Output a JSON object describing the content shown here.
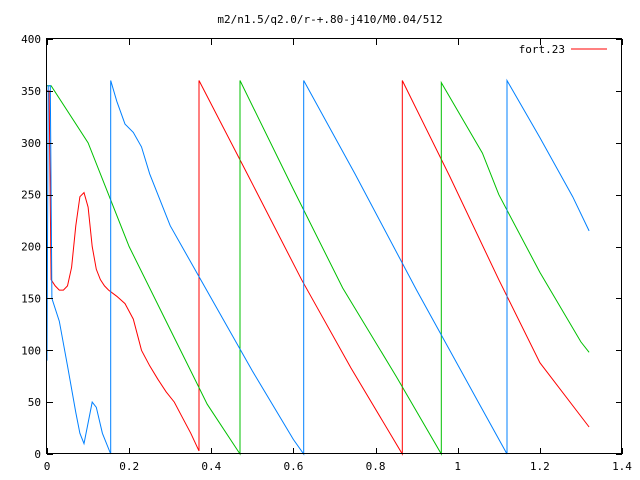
{
  "chart_data": {
    "type": "line",
    "title": "m2/n1.5/q2.0/r-+.80-j410/M0.04/512",
    "xlabel": "",
    "ylabel": "",
    "xlim": [
      0,
      1.4
    ],
    "ylim": [
      0,
      400
    ],
    "xticks": [
      0,
      0.2,
      0.4,
      0.6,
      0.8,
      1,
      1.2,
      1.4
    ],
    "xtick_labels": [
      "0",
      "0.2",
      "0.4",
      "0.6",
      "0.8",
      "1",
      "1.2",
      "1.4"
    ],
    "yticks": [
      0,
      50,
      100,
      150,
      200,
      250,
      300,
      350,
      400
    ],
    "ytick_labels": [
      "0",
      "50",
      "100",
      "150",
      "200",
      "250",
      "300",
      "350",
      "400"
    ],
    "legend": {
      "placement": "top-right",
      "entries": [
        {
          "label": "fort.23",
          "color": "#ff0000"
        }
      ]
    },
    "grid": false,
    "series": [
      {
        "color": "#ff0000",
        "points": [
          [
            0.0,
            350
          ],
          [
            0.005,
            350
          ],
          [
            0.01,
            168
          ],
          [
            0.02,
            162
          ],
          [
            0.03,
            158
          ],
          [
            0.04,
            158
          ],
          [
            0.05,
            162
          ],
          [
            0.06,
            180
          ],
          [
            0.07,
            220
          ],
          [
            0.08,
            248
          ],
          [
            0.09,
            252
          ],
          [
            0.1,
            238
          ],
          [
            0.11,
            200
          ],
          [
            0.12,
            178
          ],
          [
            0.13,
            168
          ],
          [
            0.14,
            162
          ],
          [
            0.15,
            158
          ],
          [
            0.17,
            152
          ],
          [
            0.19,
            145
          ],
          [
            0.21,
            130
          ],
          [
            0.23,
            100
          ],
          [
            0.25,
            85
          ],
          [
            0.27,
            72
          ],
          [
            0.29,
            60
          ],
          [
            0.31,
            50
          ],
          [
            0.33,
            35
          ],
          [
            0.35,
            20
          ],
          [
            0.37,
            3
          ],
          [
            0.37,
            360
          ],
          [
            0.49,
            268
          ],
          [
            0.62,
            168
          ],
          [
            0.74,
            83
          ],
          [
            0.865,
            0
          ],
          [
            0.865,
            360
          ],
          [
            0.98,
            268
          ],
          [
            1.1,
            168
          ],
          [
            1.2,
            88
          ],
          [
            1.32,
            26
          ]
        ]
      },
      {
        "color": "#00c000",
        "points": [
          [
            0.0,
            355
          ],
          [
            0.005,
            355
          ],
          [
            0.01,
            355
          ],
          [
            0.1,
            300
          ],
          [
            0.2,
            200
          ],
          [
            0.3,
            120
          ],
          [
            0.35,
            80
          ],
          [
            0.39,
            48
          ],
          [
            0.47,
            0
          ],
          [
            0.47,
            360
          ],
          [
            0.6,
            255
          ],
          [
            0.72,
            160
          ],
          [
            0.85,
            75
          ],
          [
            0.96,
            0
          ],
          [
            0.96,
            358
          ],
          [
            1.06,
            290
          ],
          [
            1.1,
            250
          ],
          [
            1.2,
            175
          ],
          [
            1.3,
            108
          ],
          [
            1.32,
            98
          ]
        ]
      },
      {
        "color": "#0080ff",
        "points": [
          [
            0.0,
            90
          ],
          [
            0.003,
            355
          ],
          [
            0.008,
            355
          ],
          [
            0.012,
            150
          ],
          [
            0.03,
            128
          ],
          [
            0.05,
            85
          ],
          [
            0.07,
            40
          ],
          [
            0.08,
            20
          ],
          [
            0.09,
            10
          ],
          [
            0.1,
            30
          ],
          [
            0.11,
            50
          ],
          [
            0.12,
            45
          ],
          [
            0.135,
            20
          ],
          [
            0.155,
            0
          ],
          [
            0.155,
            360
          ],
          [
            0.17,
            340
          ],
          [
            0.19,
            318
          ],
          [
            0.21,
            310
          ],
          [
            0.23,
            296
          ],
          [
            0.25,
            270
          ],
          [
            0.3,
            220
          ],
          [
            0.4,
            150
          ],
          [
            0.5,
            80
          ],
          [
            0.6,
            14
          ],
          [
            0.625,
            0
          ],
          [
            0.625,
            360
          ],
          [
            0.75,
            270
          ],
          [
            0.9,
            158
          ],
          [
            1.05,
            50
          ],
          [
            1.12,
            0
          ],
          [
            1.12,
            360
          ],
          [
            1.2,
            305
          ],
          [
            1.28,
            248
          ],
          [
            1.32,
            215
          ]
        ]
      }
    ]
  }
}
